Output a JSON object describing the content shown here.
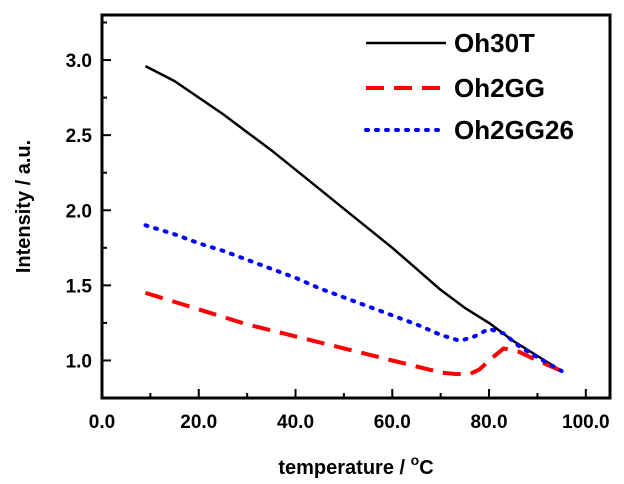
{
  "chart_data": {
    "type": "line",
    "title": "",
    "xlabel_prefix": "temperature / ",
    "xlabel_degree": "o",
    "xlabel_unit": "C",
    "ylabel": "Intensity / a.u.",
    "xlim": [
      0,
      105
    ],
    "ylim": [
      0.75,
      3.3
    ],
    "xticks": [
      "0.0",
      "20.0",
      "40.0",
      "60.0",
      "80.0",
      "100.0"
    ],
    "yticks": [
      "1.0",
      "1.5",
      "2.0",
      "2.5",
      "3.0"
    ],
    "legend_position": "top-right",
    "grid": false,
    "series": [
      {
        "name": "Oh30T",
        "color": "#000000",
        "style": "solid",
        "x": [
          9,
          15,
          20,
          25,
          30,
          35,
          40,
          45,
          50,
          55,
          60,
          65,
          70,
          75,
          80,
          85,
          90,
          95
        ],
        "y": [
          2.96,
          2.86,
          2.75,
          2.64,
          2.52,
          2.4,
          2.27,
          2.14,
          2.01,
          1.88,
          1.75,
          1.61,
          1.47,
          1.35,
          1.25,
          1.13,
          1.03,
          0.93
        ]
      },
      {
        "name": "Oh2GG",
        "color": "#ff0000",
        "style": "dashed",
        "x": [
          9,
          15,
          20,
          25,
          30,
          35,
          40,
          45,
          50,
          55,
          60,
          65,
          70,
          73,
          76,
          78,
          80,
          83,
          86,
          90,
          95
        ],
        "y": [
          1.45,
          1.39,
          1.34,
          1.29,
          1.24,
          1.2,
          1.16,
          1.12,
          1.08,
          1.04,
          1.0,
          0.96,
          0.92,
          0.91,
          0.91,
          0.94,
          1.0,
          1.08,
          1.06,
          1.0,
          0.93
        ]
      },
      {
        "name": "Oh2GG26",
        "color": "#0000ff",
        "style": "dotted",
        "x": [
          9,
          15,
          20,
          25,
          30,
          35,
          40,
          45,
          50,
          55,
          60,
          65,
          70,
          74,
          77,
          80,
          83,
          86,
          90,
          95
        ],
        "y": [
          1.9,
          1.84,
          1.78,
          1.73,
          1.67,
          1.61,
          1.55,
          1.48,
          1.42,
          1.36,
          1.3,
          1.24,
          1.17,
          1.13,
          1.16,
          1.21,
          1.18,
          1.1,
          1.02,
          0.93
        ]
      }
    ]
  }
}
